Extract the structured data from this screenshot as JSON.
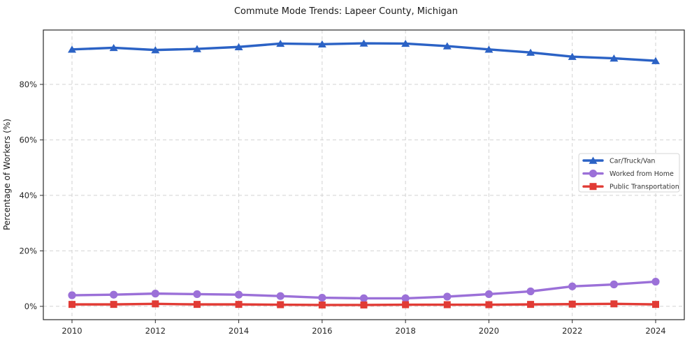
{
  "chart_data": {
    "type": "line",
    "title": "Commute Mode Trends: Lapeer County, Michigan",
    "xlabel": "",
    "ylabel": "Percentage of Workers (%)",
    "x": [
      2010,
      2011,
      2012,
      2013,
      2014,
      2015,
      2016,
      2017,
      2018,
      2019,
      2020,
      2021,
      2022,
      2023,
      2024
    ],
    "series": [
      {
        "name": "Car/Truck/Van",
        "marker": "triangle",
        "color": "#2b62c5",
        "values": [
          92.6,
          93.2,
          92.4,
          92.8,
          93.5,
          94.7,
          94.5,
          94.8,
          94.7,
          93.8,
          92.6,
          91.5,
          90.0,
          89.4,
          88.5
        ]
      },
      {
        "name": "Worked from Home",
        "marker": "circle",
        "color": "#9b70d8",
        "values": [
          4.0,
          4.2,
          4.6,
          4.4,
          4.2,
          3.7,
          3.1,
          2.9,
          2.9,
          3.5,
          4.4,
          5.4,
          7.2,
          7.9,
          8.9
        ]
      },
      {
        "name": "Public Transportation",
        "marker": "square",
        "color": "#e13b35",
        "values": [
          0.7,
          0.7,
          0.9,
          0.7,
          0.7,
          0.6,
          0.5,
          0.5,
          0.6,
          0.6,
          0.6,
          0.7,
          0.8,
          0.9,
          0.7
        ]
      }
    ],
    "xticks": [
      2010,
      2012,
      2014,
      2016,
      2018,
      2020,
      2022,
      2024
    ],
    "yticks": [
      0,
      20,
      40,
      60,
      80
    ],
    "ytick_labels": [
      "0%",
      "20%",
      "40%",
      "60%",
      "80%"
    ],
    "ylim": [
      -4.8,
      99.6
    ],
    "grid": true,
    "legend_position": "center-right"
  },
  "colors": {
    "grid": "#d2d2d2",
    "spine": "#2a2a2a",
    "legend_border": "#d5d5d5",
    "legend_bg": "#ffffff"
  }
}
